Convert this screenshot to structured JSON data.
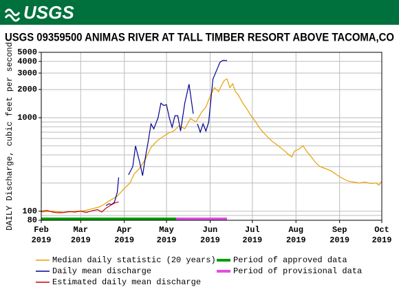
{
  "header": {
    "logo": "USGS"
  },
  "chart_data": {
    "type": "line",
    "title": "USGS 09359500 ANIMAS RIVER AT TALL TIMBER RESORT ABOVE TACOMA,CO",
    "y_label": "DAILY Discharge, cubic feet per second",
    "log_y": true,
    "grid": true,
    "xlim": [
      0,
      242
    ],
    "ylim": [
      80,
      5000
    ],
    "xticks": [
      {
        "value": 0,
        "label": "Feb 2019"
      },
      {
        "value": 28,
        "label": "Mar 2019"
      },
      {
        "value": 59,
        "label": "Apr 2019"
      },
      {
        "value": 89,
        "label": "May 2019"
      },
      {
        "value": 120,
        "label": "Jun 2019"
      },
      {
        "value": 150,
        "label": "Jul 2019"
      },
      {
        "value": 181,
        "label": "Aug 2019"
      },
      {
        "value": 212,
        "label": "Sep 2019"
      },
      {
        "value": 242,
        "label": "Oct 2019"
      }
    ],
    "yticks": [
      80,
      100,
      1000,
      2000,
      3000,
      4000,
      5000
    ],
    "ygrid": [
      90,
      100,
      200,
      300,
      400,
      500,
      600,
      700,
      800,
      900,
      1000,
      2000,
      3000,
      4000
    ],
    "series": [
      {
        "name": "Median daily statistic (20 years)",
        "color": "#e6a000",
        "x": [
          0,
          8,
          16,
          24,
          30,
          36,
          42,
          48,
          54,
          59,
          63,
          66,
          70,
          74,
          78,
          82,
          86,
          90,
          94,
          98,
          102,
          106,
          110,
          114,
          117,
          120,
          123,
          126,
          128,
          130,
          132,
          134,
          136,
          138,
          140,
          143,
          146,
          149,
          152,
          155,
          158,
          161,
          164,
          167,
          170,
          173,
          176,
          178,
          180,
          183,
          186,
          189,
          192,
          195,
          198,
          202,
          206,
          210,
          214,
          218,
          222,
          226,
          230,
          234,
          238,
          240,
          242
        ],
        "values": [
          98,
          100,
          97,
          100,
          101,
          106,
          112,
          128,
          145,
          175,
          200,
          250,
          290,
          360,
          480,
          560,
          620,
          680,
          720,
          820,
          760,
          980,
          900,
          1150,
          1300,
          1700,
          2100,
          1900,
          2200,
          2500,
          2600,
          2100,
          2300,
          1900,
          1750,
          1450,
          1250,
          1050,
          920,
          780,
          690,
          620,
          560,
          520,
          480,
          440,
          400,
          380,
          440,
          460,
          500,
          430,
          380,
          330,
          300,
          285,
          270,
          245,
          225,
          210,
          205,
          200,
          205,
          198,
          200,
          190,
          210
        ]
      },
      {
        "name": "Daily mean discharge",
        "color": "#000090",
        "x": [
          46,
          48,
          50,
          52,
          54,
          55,
          57,
          62,
          65,
          67,
          70,
          72,
          74,
          76,
          78,
          80,
          83,
          85,
          87,
          89,
          91,
          93,
          95,
          97,
          99,
          102,
          105,
          108,
          109,
          111,
          113,
          115,
          117,
          119,
          122,
          125,
          127,
          129,
          132
        ],
        "values": [
          115,
          120,
          118,
          125,
          160,
          230,
          null,
          245,
          300,
          500,
          330,
          240,
          380,
          560,
          860,
          760,
          1000,
          1430,
          1350,
          1380,
          1000,
          790,
          1050,
          1050,
          720,
          1430,
          2280,
          1100,
          null,
          860,
          700,
          860,
          720,
          900,
          2580,
          3320,
          3920,
          4100,
          4080
        ]
      },
      {
        "name": "Estimated daily mean discharge",
        "color": "#cc0000",
        "x": [
          0,
          4,
          8,
          12,
          16,
          20,
          24,
          28,
          32,
          36,
          40,
          43,
          46,
          49,
          52,
          55
        ],
        "values": [
          100,
          102,
          98,
          96,
          97,
          99,
          98,
          100,
          97,
          101,
          104,
          98,
          108,
          115,
          122,
          126
        ]
      }
    ],
    "periods": [
      {
        "name": "Period of approved data",
        "color": "#00a000",
        "x": [
          0,
          96
        ]
      },
      {
        "name": "Period of provisional data",
        "color": "#e050e0",
        "x": [
          96,
          132
        ]
      }
    ]
  }
}
